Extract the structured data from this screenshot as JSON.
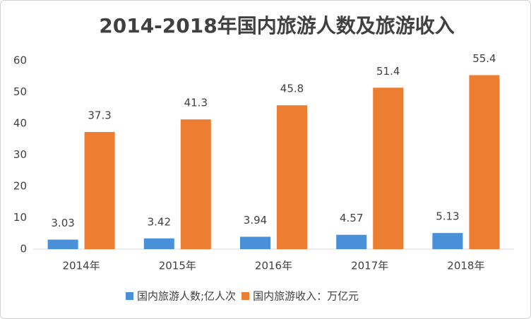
{
  "chart_data": {
    "type": "bar",
    "title": "2014-2018年国内旅游人数及旅游收入",
    "categories": [
      "2014年",
      "2015年",
      "2016年",
      "2017年",
      "2018年"
    ],
    "series": [
      {
        "name": "国内旅游人数;亿人次",
        "color": "#4a90d9",
        "values": [
          3.03,
          3.42,
          3.94,
          4.57,
          5.13
        ]
      },
      {
        "name": "国内旅游收入：万亿元",
        "color": "#ed7d31",
        "values": [
          37.3,
          41.3,
          45.8,
          51.4,
          55.4
        ]
      }
    ],
    "ylim": [
      0,
      60
    ],
    "yticks": [
      0,
      10,
      20,
      30,
      40,
      50,
      60
    ],
    "grid": false,
    "legend": "bottom"
  }
}
